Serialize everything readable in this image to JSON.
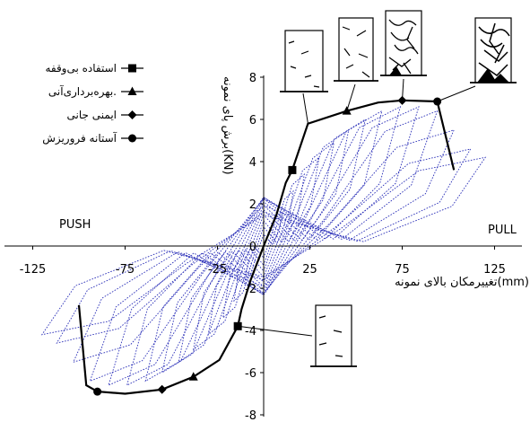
{
  "chart_data": {
    "type": "line",
    "xlabel": "تغییرمکان بالای نمونه(mm)",
    "ylabel": "برش پای نمونه(KN)",
    "xlim": [
      -125,
      125
    ],
    "ylim": [
      -8,
      8
    ],
    "x_ticks": [
      "-125",
      "-75",
      "-25",
      "25",
      "75",
      "125"
    ],
    "x_tick_values": [
      -125,
      -75,
      -25,
      25,
      75,
      125
    ],
    "y_ticks": [
      "-8",
      "-6",
      "-4",
      "-2",
      "0",
      "2",
      "4",
      "6",
      "8"
    ],
    "y_tick_values": [
      -8,
      -6,
      -4,
      -2,
      0,
      2,
      4,
      6,
      8
    ],
    "side_labels": {
      "left": "PUSH",
      "right": "PULL"
    },
    "legend": [
      {
        "label": "استفاده بی‌وقفه",
        "marker": "square"
      },
      {
        "label": "بهره‌برداری‌آنی.",
        "marker": "triangle"
      },
      {
        "label": "ایمنی جانی",
        "marker": "diamond"
      },
      {
        "label": "آستانه فروریزش",
        "marker": "circle"
      }
    ],
    "envelope": {
      "positive": [
        [
          0,
          0
        ],
        [
          7,
          1.5
        ],
        [
          12,
          3
        ],
        [
          15.5,
          3.6
        ],
        [
          24,
          5.8
        ],
        [
          45,
          6.4
        ],
        [
          62,
          6.8
        ],
        [
          75,
          6.9
        ],
        [
          94,
          6.85
        ],
        [
          103,
          3.6
        ]
      ],
      "negative": [
        [
          0,
          0
        ],
        [
          -7,
          -1.6
        ],
        [
          -12,
          -3
        ],
        [
          -14,
          -3.8
        ],
        [
          -24,
          -5.4
        ],
        [
          -38,
          -6.2
        ],
        [
          -55,
          -6.8
        ],
        [
          -75,
          -7
        ],
        [
          -90,
          -6.9
        ],
        [
          -96,
          -6.6
        ],
        [
          -100,
          -2.8
        ]
      ]
    },
    "performance_points": [
      {
        "level": "استفاده بی‌وقفه",
        "marker": "square",
        "points": [
          [
            15.5,
            3.6
          ],
          [
            -14,
            -3.8
          ]
        ]
      },
      {
        "level": "بهره‌برداری‌آنی.",
        "marker": "triangle",
        "points": [
          [
            45,
            6.4
          ],
          [
            -38,
            -6.2
          ]
        ]
      },
      {
        "level": "ایمنی جانی",
        "marker": "diamond",
        "points": [
          [
            75,
            6.9
          ],
          [
            -55,
            -6.8
          ]
        ]
      },
      {
        "level": "آستانه فروریزش",
        "marker": "circle",
        "points": [
          [
            94,
            6.85
          ],
          [
            -90,
            -6.9
          ]
        ]
      }
    ],
    "hysteresis_loop_amplitudes": [
      [
        10,
        1.6
      ],
      [
        16,
        2.6
      ],
      [
        22,
        3.4
      ],
      [
        30,
        4.2
      ],
      [
        38,
        4.9
      ],
      [
        46,
        5.5
      ],
      [
        55,
        6.0
      ],
      [
        64,
        6.4
      ],
      [
        74,
        6.6
      ],
      [
        84,
        6.6
      ],
      [
        94,
        6.4
      ],
      [
        103,
        5.5
      ],
      [
        112,
        4.6
      ],
      [
        120,
        4.2
      ]
    ],
    "colors": {
      "envelope": "#000000",
      "hysteresis": "#2a2fb8",
      "axes": "#000000"
    },
    "grid": false,
    "legend_position": "top-left"
  }
}
